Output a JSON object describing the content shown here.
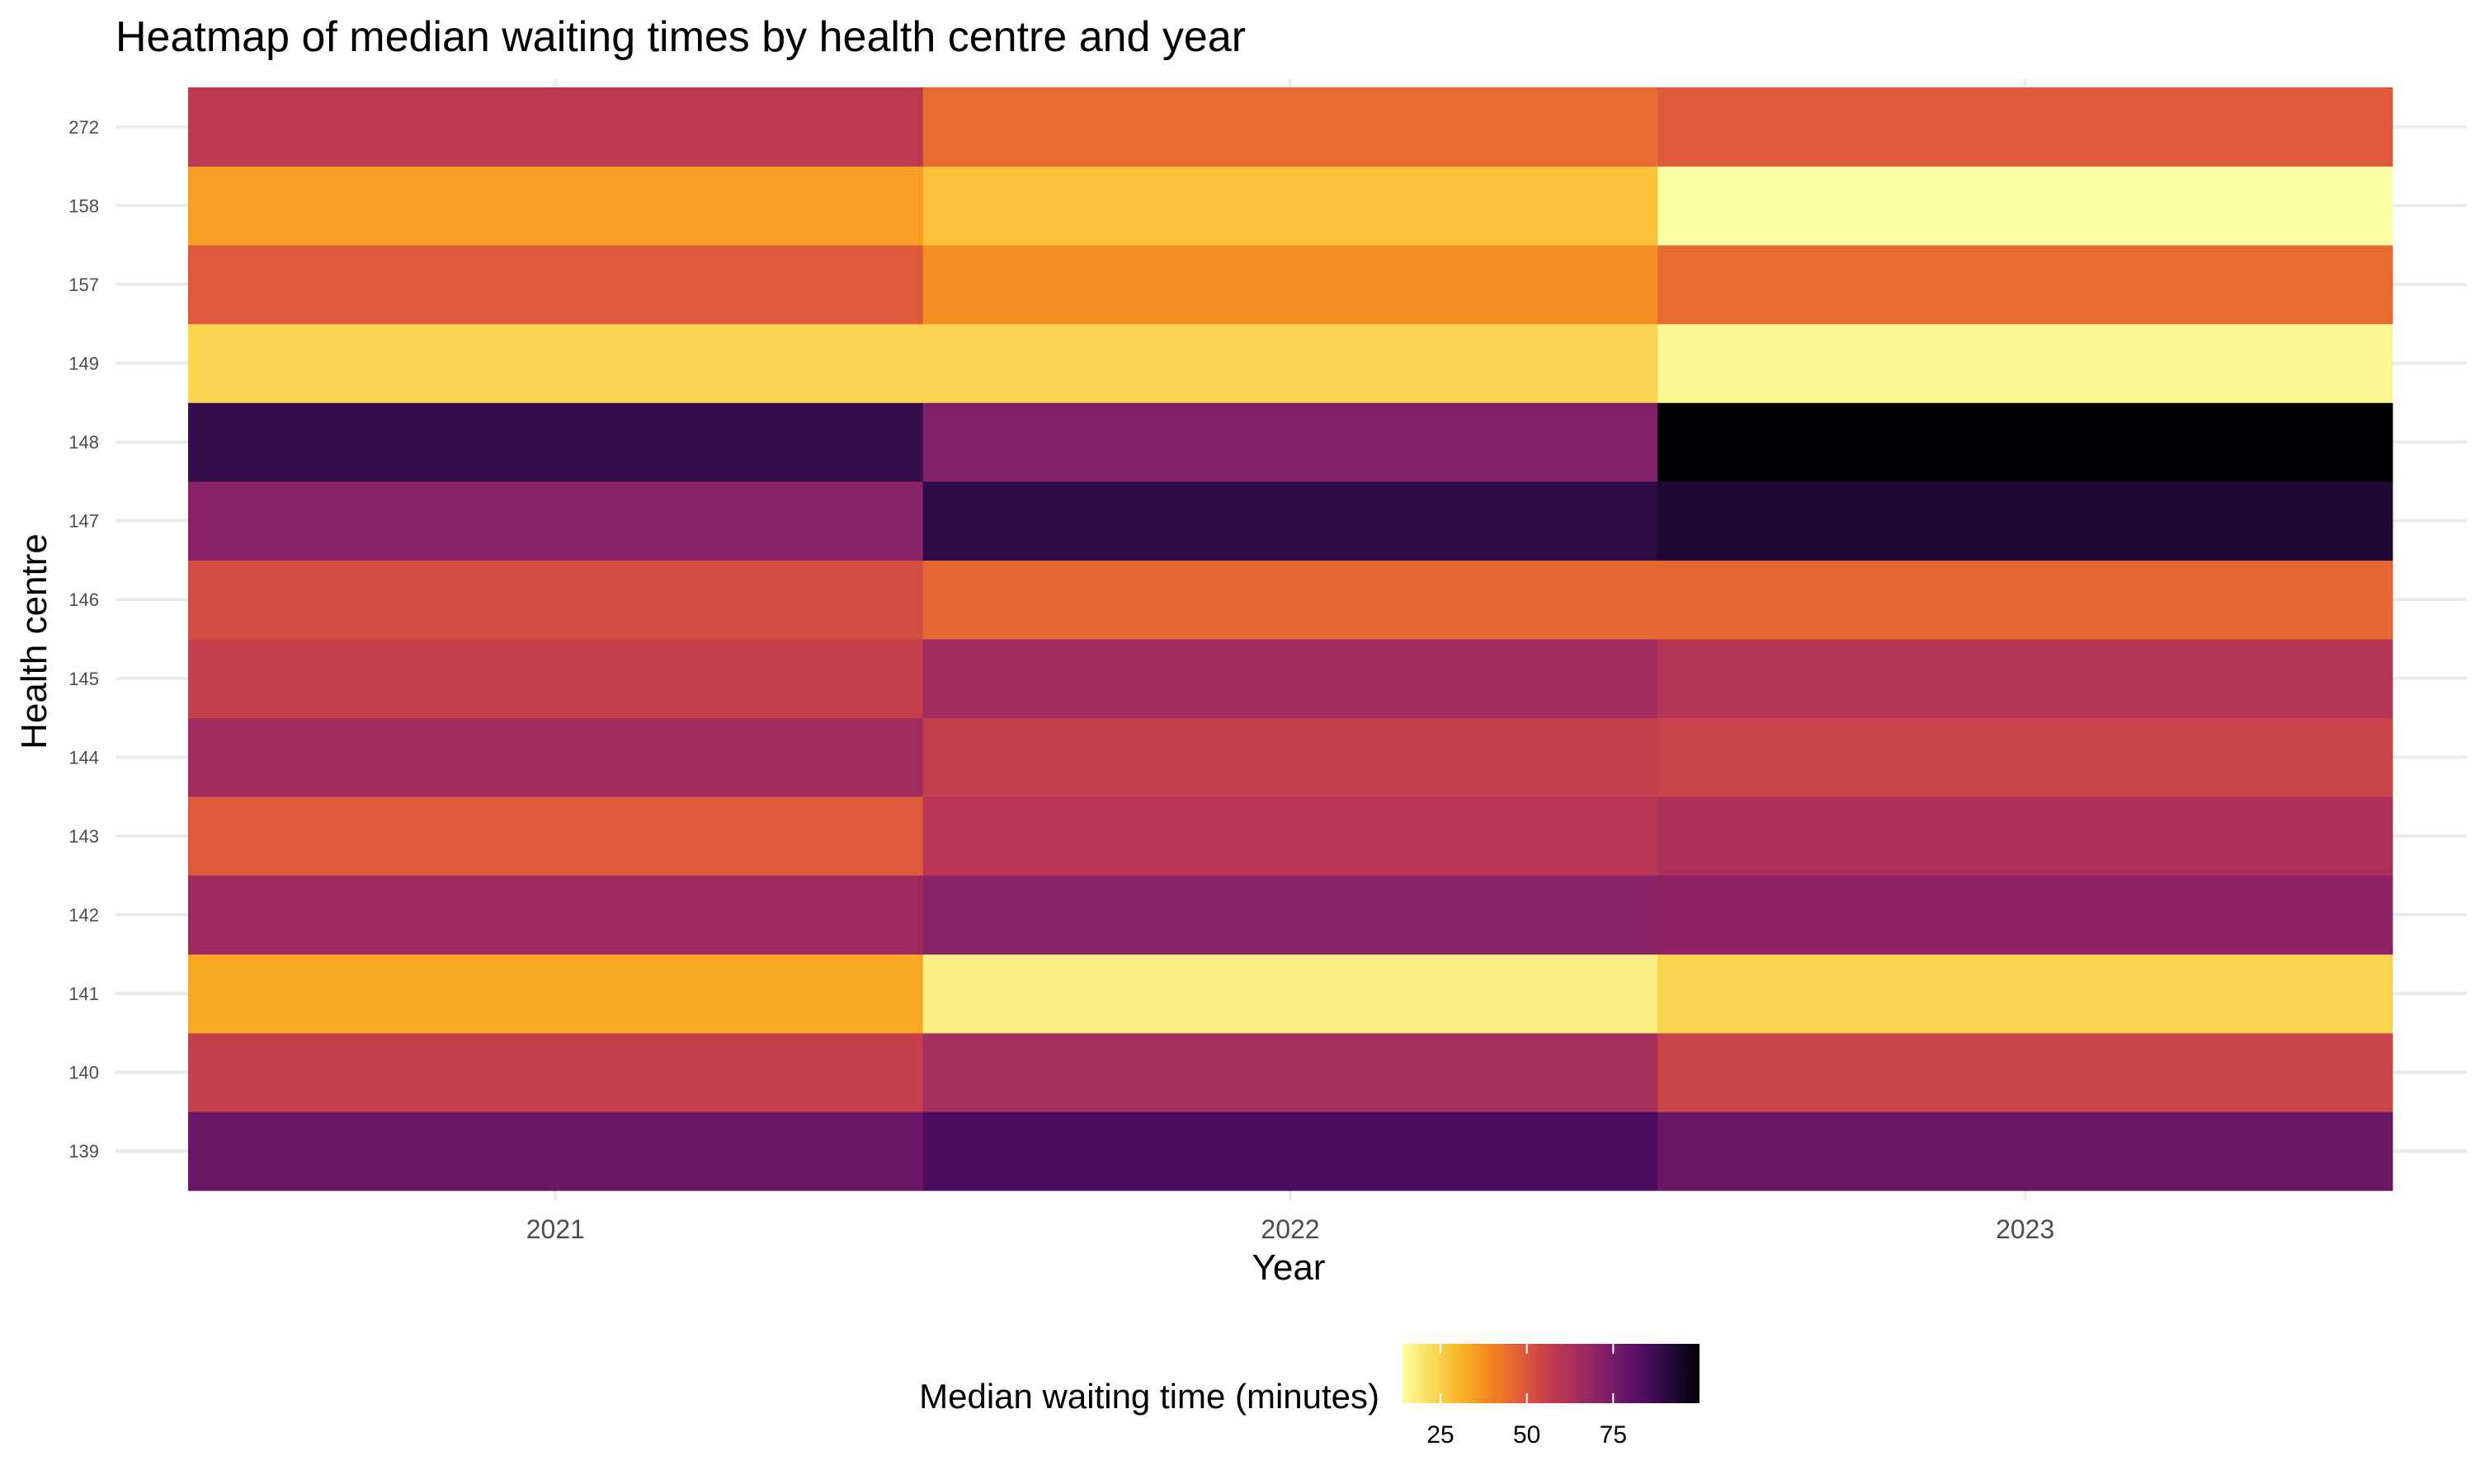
{
  "chart_data": {
    "type": "heatmap",
    "title": "Heatmap of median waiting times by health centre and year",
    "xlabel": "Year",
    "ylabel": "Health centre",
    "x": [
      "2021",
      "2022",
      "2023"
    ],
    "y": [
      "139",
      "140",
      "141",
      "142",
      "143",
      "144",
      "145",
      "146",
      "147",
      "148",
      "149",
      "157",
      "158",
      "272"
    ],
    "values": [
      [
        78,
        84,
        78
      ],
      [
        56,
        64,
        55
      ],
      [
        33,
        18,
        24
      ],
      [
        66,
        71,
        70
      ],
      [
        49,
        59,
        63
      ],
      [
        65,
        56,
        55
      ],
      [
        56,
        65,
        60
      ],
      [
        52,
        46,
        46
      ],
      [
        71,
        90,
        93
      ],
      [
        88,
        73,
        100
      ],
      [
        24,
        24,
        16
      ],
      [
        49,
        38,
        45
      ],
      [
        35,
        28,
        14
      ],
      [
        58,
        45,
        49
      ]
    ],
    "legend": {
      "title": "Median waiting time (minutes)",
      "ticks": [
        25,
        50,
        75
      ],
      "range": [
        14,
        100
      ],
      "placement": "bottom",
      "palette": "inferno (reversed)"
    },
    "grid": true
  }
}
